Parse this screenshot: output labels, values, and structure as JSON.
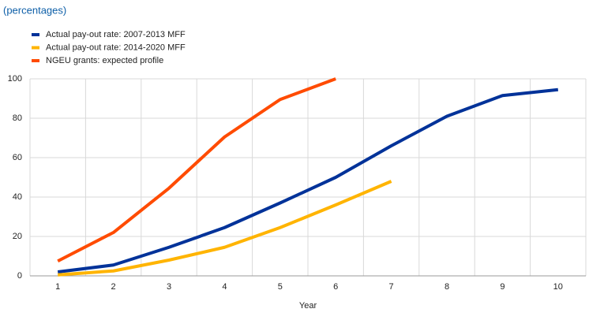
{
  "chart_data": {
    "type": "line",
    "subtitle": "(percentages)",
    "x_label": "Year",
    "categories": [
      "1",
      "2",
      "3",
      "4",
      "5",
      "6",
      "7",
      "8",
      "9",
      "10"
    ],
    "series": [
      {
        "name": "Actual pay-out rate: 2007-2013 MFF",
        "color": "#003299",
        "values": [
          2,
          5.5,
          14.5,
          24.5,
          37,
          50,
          66,
          81,
          91.5,
          94.5
        ]
      },
      {
        "name": "Actual pay-out rate: 2014-2020 MFF",
        "color": "#ffb400",
        "values": [
          0.5,
          2.5,
          8,
          14.5,
          24.5,
          36,
          48,
          null,
          null,
          null
        ]
      },
      {
        "name": "NGEU grants: expected profile",
        "color": "#ff4b00",
        "values": [
          7.5,
          22,
          44.5,
          70.5,
          89.5,
          100,
          null,
          null,
          null,
          null
        ]
      }
    ],
    "ylim": [
      0,
      100
    ],
    "yticks": [
      0,
      20,
      40,
      60,
      80,
      100
    ],
    "grid": true
  }
}
